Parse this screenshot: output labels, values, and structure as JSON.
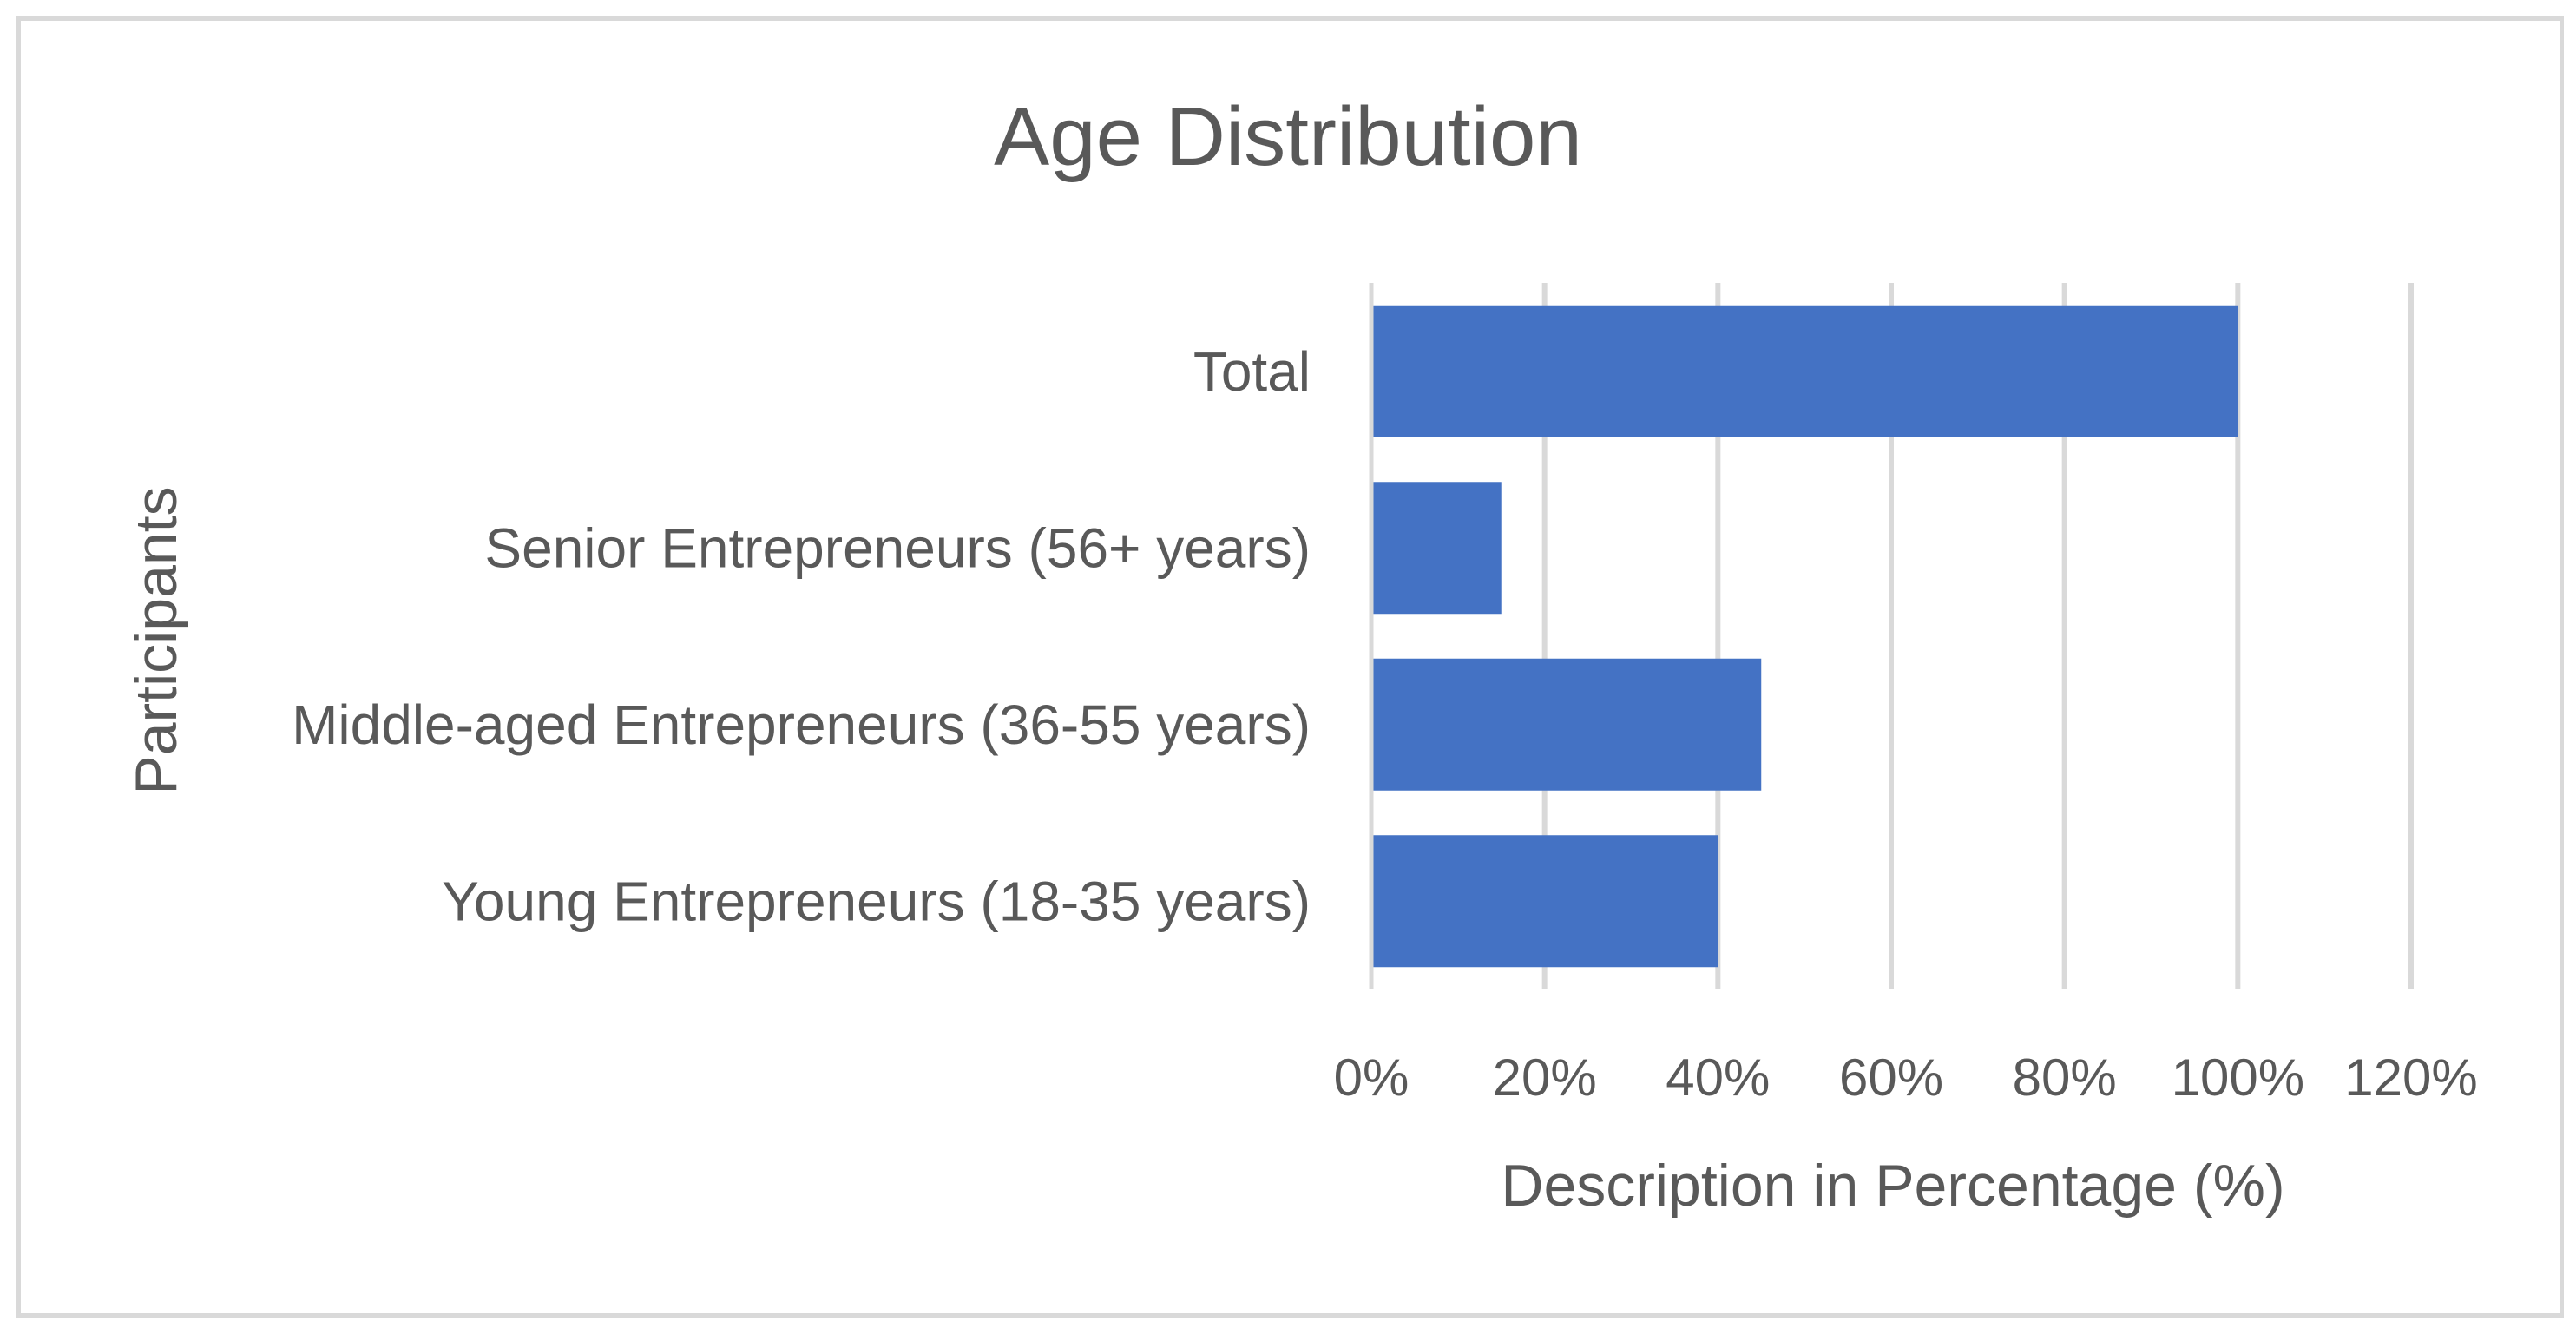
{
  "chart_data": {
    "type": "bar",
    "orientation": "horizontal",
    "title": "Age Distribution",
    "xlabel": "Description in Percentage (%)",
    "ylabel": "Participants",
    "categories": [
      "Young Entrepreneurs (18-35 years)",
      "Middle-aged Entrepreneurs (36-55 years)",
      "Senior Entrepreneurs (56+ years)",
      "Total"
    ],
    "values": [
      40,
      45,
      15,
      100
    ],
    "value_unit": "%",
    "xlim": [
      0,
      120
    ],
    "xticks": [
      "0%",
      "20%",
      "40%",
      "60%",
      "80%",
      "100%",
      "120%"
    ],
    "grid": "vertical",
    "legend": "none",
    "bar_color": "#4472C4",
    "gridline_color": "#D9D9D9",
    "text_color": "#595959"
  }
}
